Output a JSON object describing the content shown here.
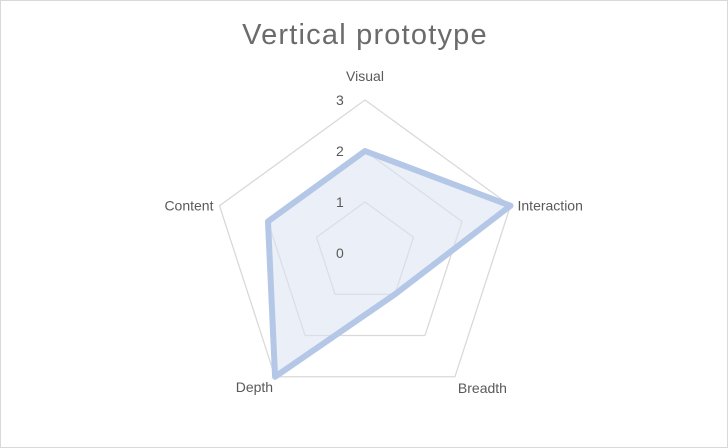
{
  "chart_data": {
    "type": "radar",
    "title": "Vertical prototype",
    "categories": [
      "Visual",
      "Interaction",
      "Breadth",
      "Depth",
      "Content"
    ],
    "series": [
      {
        "values": [
          2,
          3,
          1,
          3,
          2
        ]
      }
    ],
    "rlim": [
      0,
      3
    ],
    "ticks": [
      "0",
      "1",
      "2",
      "3"
    ],
    "grid": true,
    "legend": "none",
    "colors": {
      "grid": "#d9d9d9",
      "line": "#b4c7e7",
      "fill": "#dae3f3"
    }
  }
}
